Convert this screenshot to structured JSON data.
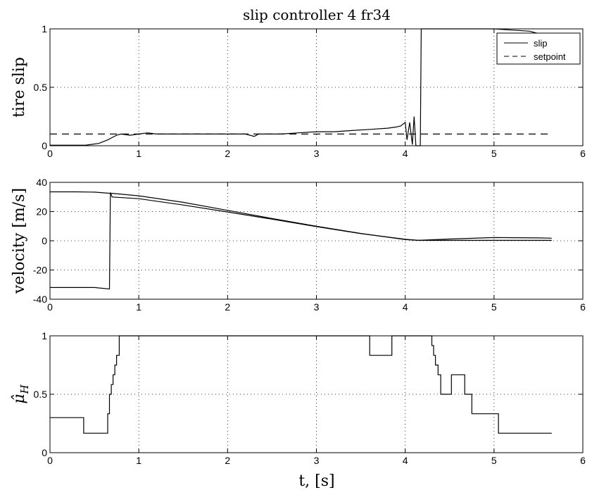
{
  "figure_title": "slip controller 4 fr34",
  "x_label": "t, [s]",
  "chart_data": [
    {
      "type": "line",
      "ylabel": "tire slip",
      "xlim": [
        0,
        6
      ],
      "ylim": [
        0,
        1
      ],
      "xticks": [
        "0",
        "1",
        "2",
        "3",
        "4",
        "5",
        "6"
      ],
      "yticks": [
        "0",
        "0.5",
        "1"
      ],
      "grid": true,
      "legend": {
        "position": "top-right",
        "entries": [
          "slip",
          "setpoint"
        ]
      },
      "series": [
        {
          "name": "slip",
          "style": "solid",
          "x": [
            0,
            0.4,
            0.55,
            0.65,
            0.7,
            0.75,
            0.8,
            0.9,
            1.0,
            1.1,
            1.2,
            1.4,
            1.6,
            1.8,
            2.0,
            2.2,
            2.3,
            2.35,
            2.4,
            2.6,
            2.8,
            3.0,
            3.2,
            3.4,
            3.6,
            3.8,
            3.9,
            3.95,
            4.0,
            4.02,
            4.05,
            4.08,
            4.1,
            4.12,
            4.15,
            4.17,
            4.18,
            4.2,
            4.4,
            4.6,
            4.8,
            5.0,
            5.2,
            5.4,
            5.55
          ],
          "y": [
            0.005,
            0.005,
            0.02,
            0.05,
            0.07,
            0.09,
            0.1,
            0.09,
            0.1,
            0.11,
            0.1,
            0.1,
            0.1,
            0.1,
            0.1,
            0.1,
            0.08,
            0.1,
            0.1,
            0.1,
            0.11,
            0.12,
            0.12,
            0.13,
            0.14,
            0.15,
            0.16,
            0.17,
            0.2,
            0.05,
            0.2,
            0.01,
            0.25,
            0.0,
            0.0,
            0.0,
            1.0,
            1.0,
            1.0,
            1.0,
            1.0,
            1.0,
            0.99,
            0.98,
            0.95
          ]
        },
        {
          "name": "setpoint",
          "style": "dashed",
          "x": [
            0,
            5.65
          ],
          "y": [
            0.1,
            0.1
          ]
        }
      ]
    },
    {
      "type": "line",
      "ylabel": "velocity [m/s]",
      "xlim": [
        0,
        6
      ],
      "ylim": [
        -40,
        40
      ],
      "xticks": [
        "0",
        "1",
        "2",
        "3",
        "4",
        "5",
        "6"
      ],
      "yticks": [
        "-40",
        "-20",
        "0",
        "20",
        "40"
      ],
      "grid": true,
      "series": [
        {
          "style": "solid",
          "x": [
            0,
            0.3,
            0.5,
            0.68,
            0.7,
            1.0,
            1.5,
            2.0,
            2.5,
            3.0,
            3.5,
            4.0,
            4.15,
            4.5,
            5.0,
            5.5,
            5.65
          ],
          "y": [
            33.5,
            33.5,
            33.3,
            32.5,
            32.5,
            30.8,
            26.3,
            20.8,
            15.3,
            10.0,
            5.0,
            0.8,
            0.3,
            1.2,
            2.2,
            2.0,
            1.8
          ]
        },
        {
          "style": "solid",
          "x": [
            0,
            0.5,
            0.67,
            0.68,
            0.7,
            1.0,
            1.5,
            2.0,
            2.5,
            3.0,
            3.5,
            4.0,
            4.15,
            4.5,
            5.0,
            5.5,
            5.65
          ],
          "y": [
            -32,
            -32,
            -33,
            33,
            30,
            28.8,
            24.5,
            19.7,
            14.8,
            9.7,
            4.9,
            1.0,
            0.3,
            0.3,
            0.3,
            0.3,
            0.3
          ]
        }
      ]
    },
    {
      "type": "line",
      "ylabel": "μ̂_H",
      "xlim": [
        0,
        6
      ],
      "ylim": [
        0,
        1
      ],
      "xticks": [
        "0",
        "1",
        "2",
        "3",
        "4",
        "5",
        "6"
      ],
      "yticks": [
        "0",
        "0.5",
        "1"
      ],
      "grid": true,
      "series": [
        {
          "style": "step",
          "x": [
            0,
            0.38,
            0.38,
            0.65,
            0.65,
            0.67,
            0.67,
            0.69,
            0.69,
            0.71,
            0.71,
            0.73,
            0.73,
            0.75,
            0.75,
            0.78,
            0.78,
            3.6,
            3.6,
            3.85,
            3.85,
            4.3,
            4.3,
            4.32,
            4.32,
            4.34,
            4.34,
            4.37,
            4.37,
            4.4,
            4.4,
            4.52,
            4.52,
            4.67,
            4.67,
            4.75,
            4.75,
            5.05,
            5.05,
            5.65
          ],
          "y": [
            0.3,
            0.3,
            0.167,
            0.167,
            0.333,
            0.333,
            0.5,
            0.5,
            0.583,
            0.583,
            0.667,
            0.667,
            0.75,
            0.75,
            0.833,
            0.833,
            1.0,
            1.0,
            0.833,
            0.833,
            1.0,
            1.0,
            0.917,
            0.917,
            0.833,
            0.833,
            0.75,
            0.75,
            0.667,
            0.667,
            0.5,
            0.5,
            0.667,
            0.667,
            0.5,
            0.5,
            0.333,
            0.333,
            0.167,
            0.167
          ]
        }
      ]
    }
  ]
}
